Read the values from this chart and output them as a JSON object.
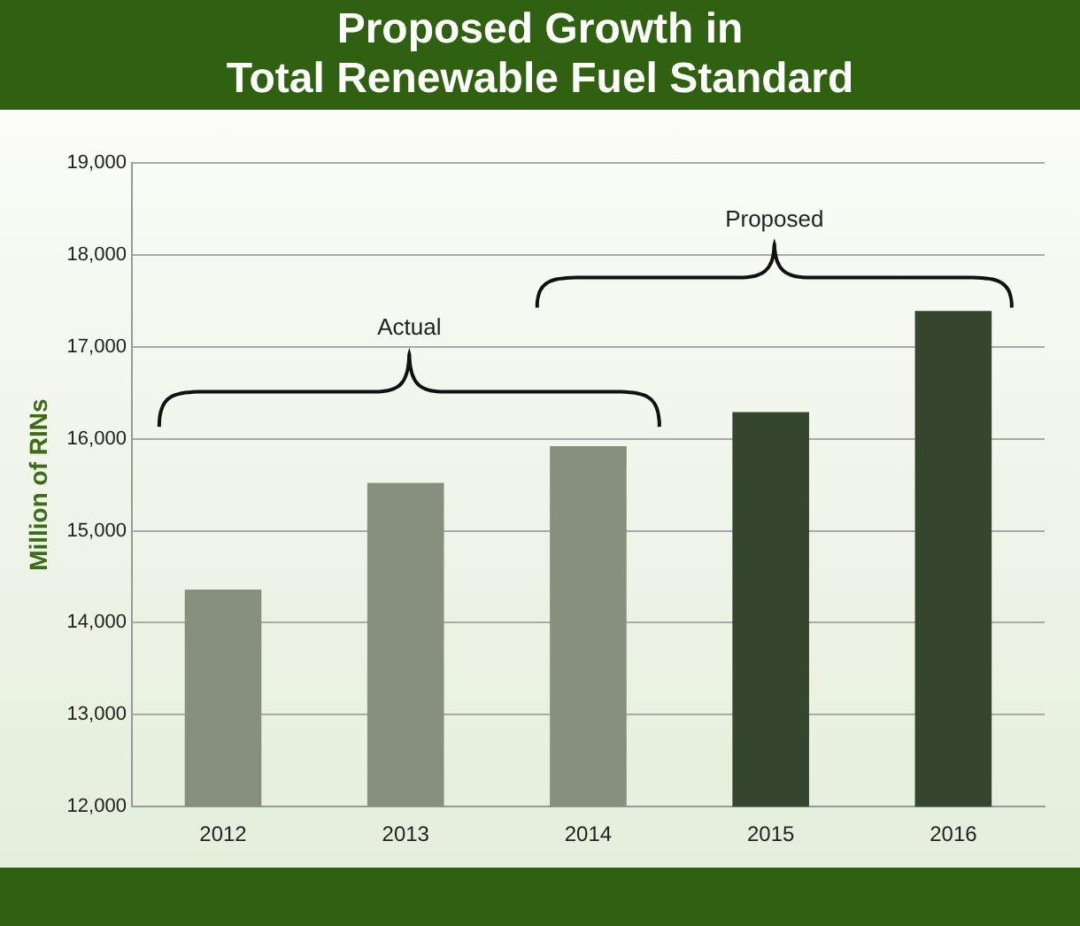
{
  "chart_data": {
    "type": "bar",
    "title": "Proposed Growth in\nTotal Renewable Fuel Standard",
    "ylabel": "Million of RINs",
    "categories": [
      "2012",
      "2013",
      "2014",
      "2015",
      "2016"
    ],
    "values": [
      14360,
      15520,
      15920,
      16290,
      17390
    ],
    "colors": [
      "#87907e",
      "#87907e",
      "#87907e",
      "#36452d",
      "#36452d"
    ],
    "ylim": [
      12000,
      19000
    ],
    "yticks": [
      {
        "value": 12000,
        "label": "12,000"
      },
      {
        "value": 13000,
        "label": "13,000"
      },
      {
        "value": 14000,
        "label": "14,000"
      },
      {
        "value": 15000,
        "label": "15,000"
      },
      {
        "value": 16000,
        "label": "16,000"
      },
      {
        "value": 17000,
        "label": "17,000"
      },
      {
        "value": 18000,
        "label": "18,000"
      },
      {
        "value": 19000,
        "label": "19,000"
      }
    ],
    "grid": "y",
    "legend": false,
    "annotations": [
      "Actual",
      "Proposed"
    ]
  }
}
